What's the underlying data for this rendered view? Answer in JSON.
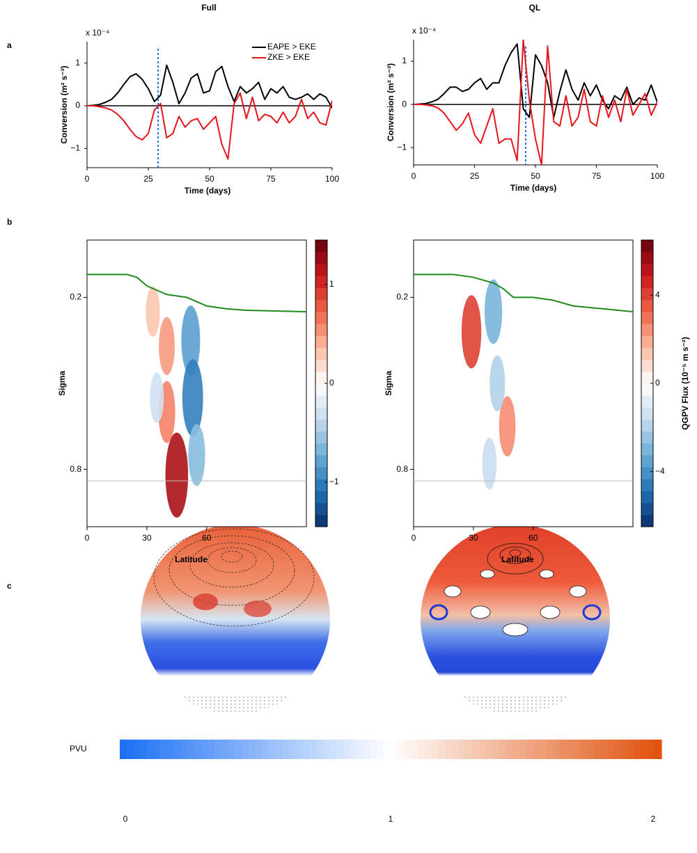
{
  "column_titles": [
    "Full",
    "QL"
  ],
  "panel_labels": [
    "a",
    "b",
    "c"
  ],
  "chart_data": [
    {
      "type": "line",
      "xlabel": "Time (days)",
      "ylabel": "Conversion (m² s⁻³)",
      "scale_label": "x 10⁻⁴",
      "x": [
        0,
        2.5,
        5,
        7.5,
        10,
        12.5,
        15,
        17.5,
        20,
        22.5,
        25,
        27.5,
        30,
        32.5,
        35,
        37.5,
        40,
        42.5,
        45,
        47.5,
        50,
        52.5,
        55,
        57.5,
        60,
        62.5,
        65,
        67.5,
        70,
        72.5,
        75,
        77.5,
        80,
        82.5,
        85,
        87.5,
        90,
        92.5,
        95,
        97.5,
        100
      ],
      "series": [
        {
          "name": "EAPE > EKE",
          "color": "#000000",
          "values": [
            0,
            0.01,
            0.03,
            0.08,
            0.15,
            0.3,
            0.5,
            0.68,
            0.75,
            0.62,
            0.4,
            0.1,
            0.25,
            0.95,
            0.55,
            0.05,
            0.3,
            0.65,
            0.75,
            0.3,
            0.35,
            0.8,
            0.92,
            0.45,
            0.1,
            0.45,
            0.3,
            0.4,
            0.55,
            0.15,
            0.4,
            0.3,
            0.45,
            0.2,
            0.15,
            0.2,
            0.28,
            0.15,
            0.28,
            0.2,
            -0.05
          ]
        },
        {
          "name": "ZKE > EKE",
          "color": "#e8141b",
          "values": [
            0,
            0,
            -0.02,
            -0.05,
            -0.1,
            -0.2,
            -0.35,
            -0.55,
            -0.72,
            -0.8,
            -0.65,
            -0.1,
            0.05,
            -0.75,
            -0.65,
            -0.25,
            -0.5,
            -0.35,
            -0.3,
            -0.55,
            -0.4,
            -0.25,
            -0.9,
            -1.25,
            0.05,
            0.3,
            -0.3,
            0.2,
            -0.35,
            -0.2,
            -0.25,
            -0.4,
            -0.15,
            -0.4,
            -0.25,
            0.15,
            -0.3,
            -0.15,
            -0.4,
            -0.45,
            0.12
          ]
        }
      ],
      "vlines": [
        29
      ],
      "vline_color": "#1f6fe0",
      "xlim": [
        0,
        100
      ],
      "xticks": [
        0,
        25,
        50,
        75,
        100
      ],
      "ylim": [
        -1.45,
        1.5
      ],
      "yticks": [
        {
          "value": -1,
          "label": "−1"
        },
        0,
        1
      ],
      "legend": "top-right"
    },
    {
      "type": "line",
      "xlabel": "Time (days)",
      "ylabel": "Conversion (m² s⁻³)",
      "scale_label": "x 10⁻⁴",
      "x": [
        0,
        2.5,
        5,
        7.5,
        10,
        12.5,
        15,
        17.5,
        20,
        22.5,
        25,
        27.5,
        30,
        32.5,
        35,
        37.5,
        40,
        42.5,
        45,
        47.5,
        50,
        52.5,
        55,
        57.5,
        60,
        62.5,
        65,
        67.5,
        70,
        72.5,
        75,
        77.5,
        80,
        82.5,
        85,
        87.5,
        90,
        92.5,
        95,
        97.5,
        100
      ],
      "series": [
        {
          "color": "#000000",
          "values": [
            0,
            0.01,
            0.02,
            0.06,
            0.12,
            0.25,
            0.4,
            0.4,
            0.3,
            0.35,
            0.5,
            0.6,
            0.35,
            0.5,
            0.5,
            0.9,
            1.2,
            1.4,
            -0.1,
            -0.3,
            1.15,
            0.9,
            0.5,
            -0.3,
            0.3,
            0.8,
            0.35,
            0.1,
            0.5,
            0.2,
            0.45,
            0.1,
            -0.1,
            0.2,
            0.1,
            0.4,
            0,
            0.15,
            0.1,
            0.45,
            0.05
          ]
        },
        {
          "color": "#e8141b",
          "values": [
            0,
            0,
            -0.01,
            -0.03,
            -0.08,
            -0.2,
            -0.4,
            -0.6,
            -0.45,
            -0.2,
            -0.7,
            -0.9,
            -0.5,
            -0.1,
            -0.9,
            -0.8,
            -0.8,
            -1.3,
            1.5,
            0.1,
            -0.8,
            -1.4,
            1.35,
            -0.4,
            -0.5,
            0.2,
            -0.5,
            -0.3,
            0.35,
            -0.4,
            -0.5,
            0.2,
            -0.3,
            0.1,
            -0.4,
            0.35,
            -0.25,
            0,
            0.25,
            -0.25,
            0.05
          ]
        }
      ],
      "vlines": [
        46
      ],
      "vline_color": "#1f6fe0",
      "xlim": [
        0,
        100
      ],
      "xticks": [
        0,
        25,
        50,
        75,
        100
      ],
      "ylim": [
        -1.4,
        1.5
      ],
      "yticks": [
        {
          "value": -1,
          "label": "−1"
        },
        0,
        1
      ]
    },
    {
      "type": "contour",
      "xlabel": "Latitude",
      "ylabel": "Sigma",
      "xlim": [
        0,
        110
      ],
      "xticks": [
        0,
        30,
        60
      ],
      "ylim": [
        0,
        1
      ],
      "y_inverted": true,
      "yticks": [
        0.2,
        0.8
      ],
      "clim": [
        -1.45,
        1.45
      ],
      "cticks": [
        {
          "value": -1,
          "label": "−1"
        },
        0,
        1
      ],
      "tropopause": {
        "color": "#1e8a1e",
        "lat": [
          0,
          10,
          20,
          25,
          30,
          40,
          50,
          60,
          70,
          80,
          110
        ],
        "sigma": [
          0.12,
          0.12,
          0.12,
          0.13,
          0.16,
          0.19,
          0.2,
          0.23,
          0.24,
          0.245,
          0.25
        ]
      },
      "anomalies": [
        {
          "lat": 33,
          "sigma": 0.25,
          "value": 0.3
        },
        {
          "lat": 40,
          "sigma": 0.37,
          "value": 0.5
        },
        {
          "lat": 40,
          "sigma": 0.6,
          "value": 0.6
        },
        {
          "lat": 45,
          "sigma": 0.82,
          "value": 1.2
        },
        {
          "lat": 52,
          "sigma": 0.35,
          "value": -0.8
        },
        {
          "lat": 53,
          "sigma": 0.55,
          "value": -1.0
        },
        {
          "lat": 55,
          "sigma": 0.75,
          "value": -0.6
        },
        {
          "lat": 35,
          "sigma": 0.55,
          "value": -0.3
        }
      ]
    },
    {
      "type": "contour",
      "xlabel": "Latitude",
      "ylabel": "Sigma",
      "xlim": [
        0,
        110
      ],
      "xticks": [
        0,
        30,
        60
      ],
      "ylim": [
        0,
        1
      ],
      "y_inverted": true,
      "yticks": [
        0.2,
        0.8
      ],
      "clim": [
        -6.5,
        6.5
      ],
      "cticks": [
        {
          "value": -4,
          "label": "−4"
        },
        0,
        4
      ],
      "clabel": "QGPV Flux (10⁻⁵ m s⁻²)",
      "tropopause": {
        "color": "#1e8a1e",
        "lat": [
          0,
          10,
          20,
          30,
          40,
          45,
          50,
          60,
          70,
          80,
          110
        ],
        "sigma": [
          0.12,
          0.12,
          0.12,
          0.13,
          0.15,
          0.17,
          0.2,
          0.2,
          0.21,
          0.23,
          0.25
        ]
      },
      "anomalies": [
        {
          "lat": 29,
          "sigma": 0.32,
          "value": 4
        },
        {
          "lat": 47,
          "sigma": 0.65,
          "value": 2.5
        },
        {
          "lat": 40,
          "sigma": 0.25,
          "value": -3
        },
        {
          "lat": 42,
          "sigma": 0.5,
          "value": -2
        },
        {
          "lat": 38,
          "sigma": 0.78,
          "value": -1.5
        }
      ]
    },
    {
      "type": "colorbar",
      "label": "PVU",
      "clim": [
        0,
        2
      ],
      "ticks": [
        0,
        1,
        2
      ],
      "colors": [
        "#1a6ef5",
        "#ffffff",
        "#e0500a"
      ]
    }
  ]
}
